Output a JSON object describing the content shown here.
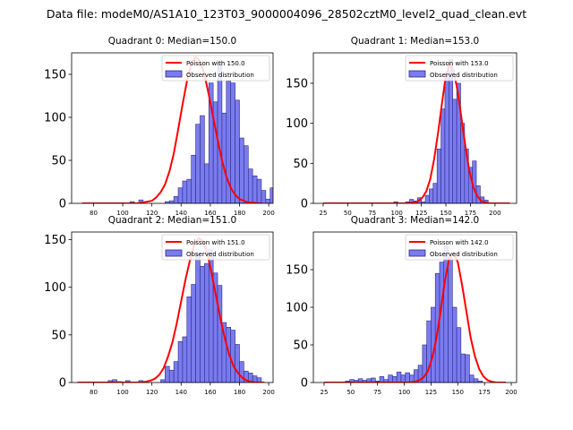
{
  "figure": {
    "suptitle": "Data file: modeM0/AS1A10_123T03_9000004096_28502cztM0_level2_quad_clean.evt"
  },
  "legend": {
    "poisson_color": "#ff0000",
    "bar_fill": "#7b7bf0",
    "bar_edge": "#2b2b80"
  },
  "chart_data": [
    {
      "type": "bar",
      "title": "Quadrant 0: Median=150.0",
      "xlim": [
        65,
        203
      ],
      "ylim": [
        0,
        175
      ],
      "xticks": [
        80,
        100,
        120,
        140,
        160,
        180,
        200
      ],
      "yticks": [
        0,
        50,
        100,
        150
      ],
      "bins": {
        "start": 72,
        "width": 3,
        "counts": [
          0,
          0,
          0,
          0,
          0,
          0,
          0,
          0,
          0,
          0,
          0,
          2,
          0,
          4,
          0,
          0,
          0,
          0,
          0,
          2,
          3,
          8,
          18,
          26,
          28,
          56,
          92,
          102,
          46,
          140,
          118,
          164,
          105,
          142,
          140,
          120,
          76,
          67,
          40,
          32,
          28,
          15,
          5,
          18,
          5,
          12,
          3,
          0
        ]
      },
      "poisson": {
        "legend": "Poisson with 150.0",
        "x": [
          72,
          75,
          78,
          81,
          84,
          87,
          90,
          93,
          96,
          99,
          102,
          105,
          108,
          111,
          114,
          117,
          120,
          123,
          126,
          129,
          132,
          135,
          138,
          141,
          144,
          147,
          150,
          153,
          156,
          159,
          162,
          165,
          168,
          171,
          174,
          177,
          180,
          183,
          186,
          189,
          192,
          195
        ],
        "y": [
          0,
          0,
          0,
          0,
          0,
          0,
          0,
          0,
          0,
          0,
          0,
          0,
          0,
          0,
          1,
          2,
          3,
          7,
          13,
          22,
          37,
          58,
          86,
          115,
          142,
          163,
          170,
          165,
          150,
          126,
          100,
          74,
          50,
          31,
          18,
          10,
          5,
          3,
          1,
          1,
          0,
          0
        ]
      },
      "observed_legend": "Observed distribution"
    },
    {
      "type": "bar",
      "title": "Quadrant 1: Median=153.0",
      "xlim": [
        15,
        222
      ],
      "ylim": [
        0,
        188
      ],
      "xticks": [
        25,
        50,
        75,
        100,
        125,
        150,
        175,
        200
      ],
      "yticks": [
        0,
        50,
        100,
        150
      ],
      "bins": {
        "start": 25,
        "width": 4,
        "counts": [
          0,
          0,
          0,
          0,
          0,
          0,
          0,
          0,
          0,
          0,
          0,
          0,
          0,
          0,
          0,
          0,
          0,
          0,
          2,
          0,
          0,
          2,
          5,
          3,
          7,
          2,
          10,
          18,
          25,
          68,
          118,
          160,
          180,
          130,
          150,
          100,
          68,
          45,
          53,
          22,
          8,
          4,
          0,
          0,
          0,
          0,
          0
        ]
      },
      "poisson": {
        "legend": "Poisson with 153.0",
        "x": [
          25,
          60,
          90,
          100,
          110,
          118,
          122,
          126,
          130,
          134,
          138,
          142,
          146,
          150,
          154,
          158,
          162,
          166,
          170,
          174,
          178,
          182,
          186,
          190,
          195,
          200,
          210,
          215
        ],
        "y": [
          0,
          0,
          0,
          0,
          0,
          1,
          3,
          7,
          15,
          30,
          55,
          88,
          125,
          160,
          175,
          165,
          140,
          105,
          70,
          40,
          20,
          9,
          3,
          1,
          0,
          0,
          0,
          0
        ]
      },
      "observed_legend": "Observed distribution"
    },
    {
      "type": "bar",
      "title": "Quadrant 2: Median=151.0",
      "xlim": [
        65,
        203
      ],
      "ylim": [
        0,
        158
      ],
      "xticks": [
        80,
        100,
        120,
        140,
        160,
        180,
        200
      ],
      "yticks": [
        0,
        50,
        100,
        150
      ],
      "bins": {
        "start": 69,
        "width": 3,
        "counts": [
          0,
          0,
          0,
          0,
          0,
          0,
          0,
          2,
          3,
          1,
          0,
          2,
          0,
          0,
          2,
          1,
          0,
          0,
          0,
          3,
          17,
          13,
          22,
          43,
          48,
          90,
          103,
          135,
          122,
          125,
          140,
          115,
          102,
          63,
          58,
          55,
          40,
          22,
          12,
          10,
          7,
          5,
          0,
          0
        ]
      },
      "poisson": {
        "legend": "Poisson with 151.0",
        "x": [
          69,
          75,
          80,
          85,
          90,
          95,
          100,
          105,
          110,
          113,
          116,
          119,
          122,
          125,
          128,
          131,
          134,
          137,
          140,
          143,
          146,
          149,
          152,
          155,
          158,
          161,
          164,
          167,
          170,
          173,
          176,
          179,
          182,
          185,
          188,
          191,
          194,
          197
        ],
        "y": [
          0,
          0,
          0,
          0,
          0,
          0,
          0,
          0,
          0,
          0,
          1,
          2,
          4,
          8,
          15,
          27,
          42,
          62,
          85,
          108,
          128,
          145,
          152,
          148,
          135,
          114,
          90,
          67,
          46,
          29,
          17,
          10,
          5,
          2,
          1,
          0,
          0,
          0
        ]
      },
      "observed_legend": "Observed distribution"
    },
    {
      "type": "bar",
      "title": "Quadrant 3: Median=142.0",
      "xlim": [
        15,
        205
      ],
      "ylim": [
        0,
        200
      ],
      "xticks": [
        25,
        50,
        75,
        100,
        125,
        150,
        175,
        200
      ],
      "yticks": [
        0,
        50,
        100,
        150
      ],
      "bins": {
        "start": 25,
        "width": 4,
        "counts": [
          0,
          0,
          0,
          0,
          0,
          2,
          4,
          3,
          5,
          3,
          5,
          6,
          2,
          8,
          4,
          10,
          8,
          14,
          10,
          13,
          10,
          17,
          23,
          50,
          82,
          100,
          145,
          160,
          182,
          165,
          100,
          73,
          38,
          37,
          10,
          5,
          2,
          0,
          0,
          0,
          0,
          0,
          0
        ]
      },
      "poisson": {
        "legend": "Poisson with 142.0",
        "x": [
          25,
          60,
          90,
          100,
          105,
          110,
          114,
          118,
          122,
          126,
          130,
          134,
          138,
          142,
          146,
          150,
          154,
          158,
          162,
          166,
          170,
          174,
          178,
          182,
          186,
          190,
          195
        ],
        "y": [
          0,
          0,
          0,
          0,
          0,
          1,
          3,
          7,
          15,
          32,
          58,
          95,
          135,
          165,
          172,
          160,
          130,
          95,
          60,
          35,
          18,
          8,
          3,
          1,
          0,
          0,
          0
        ]
      },
      "observed_legend": "Observed distribution"
    }
  ]
}
